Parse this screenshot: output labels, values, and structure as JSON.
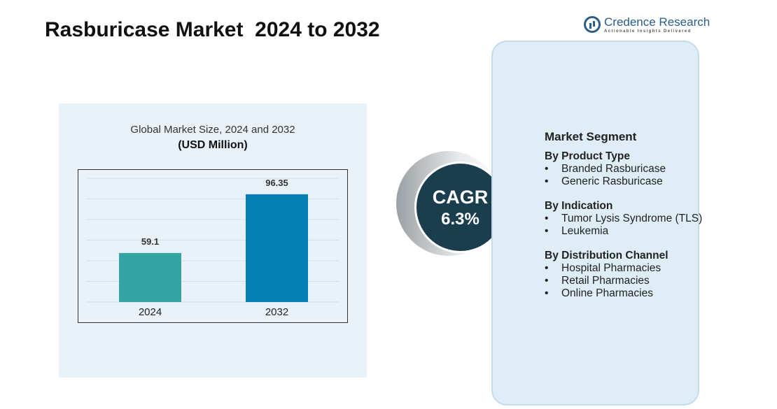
{
  "title": "Rasburicase Market  2024 to 2032",
  "logo": {
    "name": "Credence Research",
    "tagline": "Actionable Insights Delivered"
  },
  "colors": {
    "bar_2024": "#33a3a3",
    "bar_2032": "#0480b2",
    "cagr_bg": "#1b3e4e",
    "panel_bg": "#e9f2f9"
  },
  "chart_data": {
    "type": "bar",
    "title": "Global Market Size, 2024 and 2032",
    "subtitle": "(USD Million)",
    "categories": [
      "2024",
      "2032"
    ],
    "values": [
      59.1,
      96.35
    ],
    "value_labels": [
      "59.1",
      "96.35"
    ],
    "grid": true
  },
  "cagr": {
    "label": "CAGR",
    "value": "6.3%"
  },
  "segments": {
    "heading": "Market Segment",
    "groups": [
      {
        "title": "By Product Type",
        "items": [
          "Branded Rasburicase",
          "Generic Rasburicase"
        ]
      },
      {
        "title": "By Indication",
        "items": [
          "Tumor Lysis Syndrome (TLS)",
          "Leukemia"
        ]
      },
      {
        "title": "By Distribution Channel",
        "items": [
          "Hospital Pharmacies",
          "Retail Pharmacies",
          "Online Pharmacies"
        ]
      }
    ]
  }
}
